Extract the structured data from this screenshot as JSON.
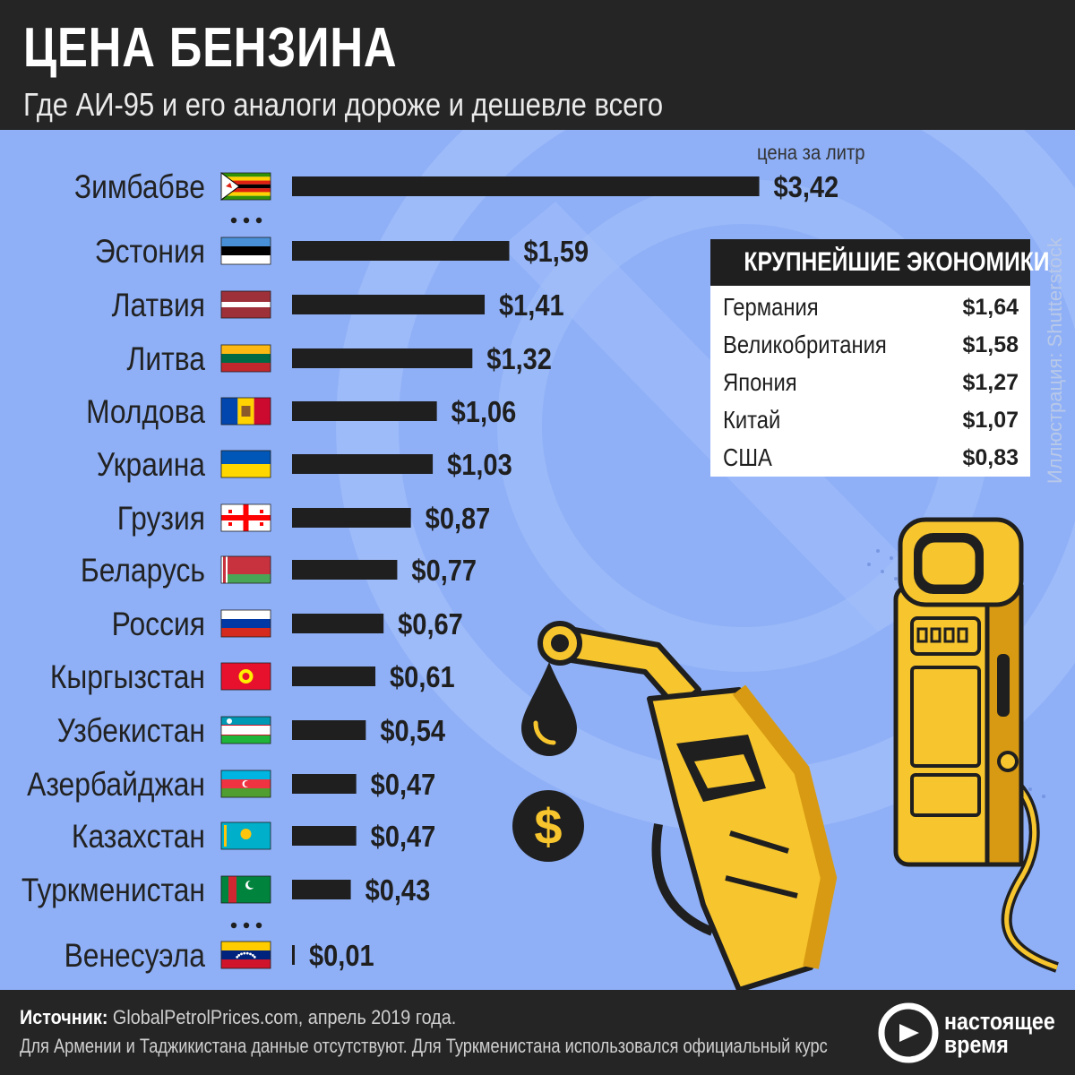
{
  "title": "ЦЕНА БЕНЗИНА",
  "subtitle": "Где АИ-95 и его аналоги дороже и дешевле всего",
  "chart_data": {
    "type": "bar",
    "orientation": "horizontal",
    "unit_label": "цена за литр",
    "categories": [
      "Зимбабве",
      "Эстония",
      "Латвия",
      "Литва",
      "Молдова",
      "Украина",
      "Грузия",
      "Беларусь",
      "Россия",
      "Кыргызстан",
      "Узбекистан",
      "Азербайджан",
      "Казахстан",
      "Туркменистан",
      "Венесуэла"
    ],
    "values": [
      3.42,
      1.59,
      1.41,
      1.32,
      1.06,
      1.03,
      0.87,
      0.77,
      0.67,
      0.61,
      0.54,
      0.47,
      0.47,
      0.43,
      0.01
    ],
    "value_labels": [
      "$3,42",
      "$1,59",
      "$1,41",
      "$1,32",
      "$1,06",
      "$1,03",
      "$0,87",
      "$0,77",
      "$0,67",
      "$0,61",
      "$0,54",
      "$0,47",
      "$0,47",
      "$0,43",
      "$0,01"
    ],
    "gap_after": [
      "Зимбабве",
      "Туркменистан"
    ],
    "bar_color": "#1f1f1f"
  },
  "economies": {
    "title": "КРУПНЕЙШИЕ ЭКОНОМИКИ",
    "rows": [
      {
        "name": "Германия",
        "value": "$1,64"
      },
      {
        "name": "Великобритания",
        "value": "$1,58"
      },
      {
        "name": "Япония",
        "value": "$1,27"
      },
      {
        "name": "Китай",
        "value": "$1,07"
      },
      {
        "name": "США",
        "value": "$0,83"
      }
    ]
  },
  "credit": "Иллюстрация: Shutterstock",
  "footer": {
    "source_label": "Источник:",
    "source_text": " GlobalPetrolPrices.com, апрель 2019 года.",
    "note": "Для Армении и Таджикистана данные отсутствуют. Для Туркменистана использовался официальный курс",
    "logo_line1": "настоящее",
    "logo_line2": "время"
  },
  "colors": {
    "background": "#8fb0f7",
    "dark": "#252525",
    "accent_yellow": "#f7c52d"
  },
  "icons": [
    "fuel-pump-icon",
    "fuel-nozzle-icon",
    "oil-drop-icon",
    "dollar-coin-icon",
    "nastoyashchee-vremya-logo-icon"
  ]
}
